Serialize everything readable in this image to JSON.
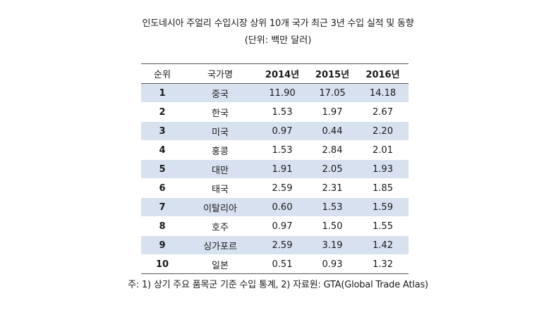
{
  "title": "인도네시아 주얼리 수입시장 상위 10개 국가 최근 3년 수입 실적 및 동향",
  "subtitle": "(단위: 백만 달러)",
  "table": {
    "headers": [
      "순위",
      "국가명",
      "2014년",
      "2015년",
      "2016년"
    ],
    "rows": [
      [
        "1",
        "중국",
        "11.90",
        "17.05",
        "14.18"
      ],
      [
        "2",
        "한국",
        "1.53",
        "1.97",
        "2.67"
      ],
      [
        "3",
        "미국",
        "0.97",
        "0.44",
        "2.20"
      ],
      [
        "4",
        "홍콩",
        "1.53",
        "2.84",
        "2.01"
      ],
      [
        "5",
        "대만",
        "1.91",
        "2.05",
        "1.93"
      ],
      [
        "6",
        "태국",
        "2.59",
        "2.31",
        "1.85"
      ],
      [
        "7",
        "이탈리아",
        "0.60",
        "1.53",
        "1.59"
      ],
      [
        "8",
        "호주",
        "0.97",
        "1.50",
        "1.55"
      ],
      [
        "9",
        "싱가포르",
        "2.59",
        "3.19",
        "1.42"
      ],
      [
        "10",
        "일본",
        "0.51",
        "0.93",
        "1.32"
      ]
    ]
  },
  "footnote": "주: 1) 상기 주요 품목군 기준 수입 통계, 2) 자료원: GTA(Global Trade Atlas)",
  "colors": {
    "row_stripe": "#d7e1ef",
    "rule": "#555555"
  }
}
